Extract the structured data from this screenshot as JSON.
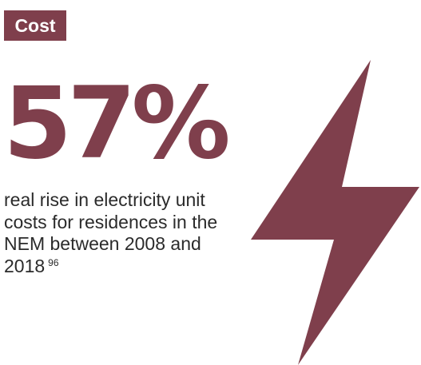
{
  "header": {
    "badge_label": "Cost"
  },
  "stat": {
    "value": "57%",
    "description": "real rise in electricity unit costs for residences in the NEM between 2008 and 2018",
    "footnote": "96"
  },
  "graphic": {
    "icon": "lightning-bolt-icon"
  },
  "colors": {
    "accent": "#7f3f4c",
    "text": "#2b2b2b",
    "background": "#ffffff"
  }
}
